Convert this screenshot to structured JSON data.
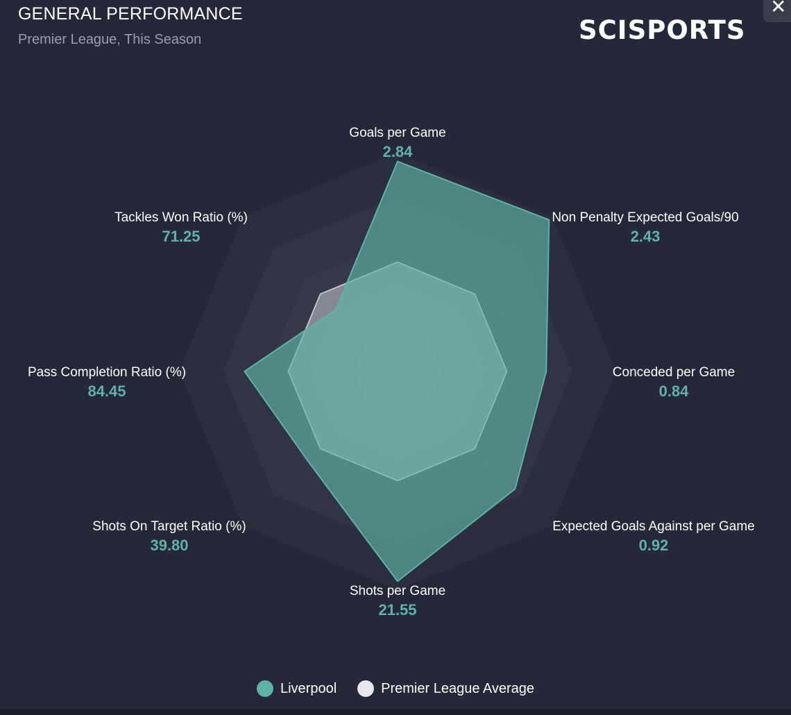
{
  "header": {
    "title": "GENERAL PERFORMANCE",
    "subtitle": "Premier League, This Season",
    "brand": "SCISPORTS",
    "close_glyph": "✕"
  },
  "colors": {
    "liverpool": "#5fb3a6",
    "average": "#e6e6ec",
    "background": "#252838"
  },
  "chart_data": {
    "type": "radar",
    "title": "GENERAL PERFORMANCE",
    "subtitle": "Premier League, This Season",
    "axes": [
      {
        "label": "Goals per Game",
        "value": "2.84"
      },
      {
        "label": "Non Penalty Expected Goals/90",
        "value": "2.43"
      },
      {
        "label": "Conceded per Game",
        "value": "0.84"
      },
      {
        "label": "Expected Goals Against per Game",
        "value": "0.92"
      },
      {
        "label": "Shots per Game",
        "value": "21.55"
      },
      {
        "label": "Shots On Target Ratio (%)",
        "value": "39.80"
      },
      {
        "label": "Pass Completion Ratio (%)",
        "value": "84.45"
      },
      {
        "label": "Tackles Won Ratio (%)",
        "value": "71.25"
      }
    ],
    "rings": 5,
    "scale_max": 1.0,
    "series": [
      {
        "name": "Premier League Average",
        "values": [
          0.5,
          0.5,
          0.5,
          0.5,
          0.5,
          0.5,
          0.5,
          0.5
        ]
      },
      {
        "name": "Liverpool",
        "values": [
          0.96,
          0.98,
          0.68,
          0.76,
          0.96,
          0.58,
          0.7,
          0.4
        ]
      }
    ],
    "legend": [
      {
        "name": "Liverpool"
      },
      {
        "name": "Premier League Average"
      }
    ],
    "legend_position": "bottom-center"
  }
}
